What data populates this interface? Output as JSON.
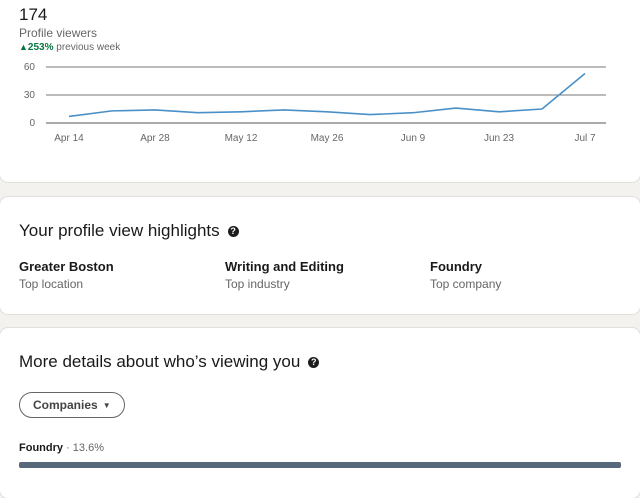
{
  "summary": {
    "count": "174",
    "label": "Profile viewers",
    "trend_arrow": "▲",
    "trend_pct": "253%",
    "trend_text": "previous week"
  },
  "chart_data": {
    "type": "line",
    "x": [
      "Apr 14",
      "Apr 21",
      "Apr 28",
      "May 5",
      "May 12",
      "May 19",
      "May 26",
      "Jun 2",
      "Jun 9",
      "Jun 16",
      "Jun 23",
      "Jun 30",
      "Jul 7"
    ],
    "tick_labels": [
      "Apr 14",
      "Apr 28",
      "May 12",
      "May 26",
      "Jun 9",
      "Jun 23",
      "Jul 7"
    ],
    "yticks": [
      "60",
      "30",
      "0"
    ],
    "ylim": [
      0,
      60
    ],
    "series": [
      {
        "values": [
          7,
          13,
          14,
          11,
          12,
          14,
          12,
          9,
          11,
          16,
          12,
          15,
          53
        ]
      }
    ],
    "line_color": "#4a90c8",
    "grid": true
  },
  "highlights": {
    "title": "Your profile view highlights",
    "items": [
      {
        "value": "Greater Boston",
        "label": "Top location"
      },
      {
        "value": "Writing and Editing",
        "label": "Top industry"
      },
      {
        "value": "Foundry",
        "label": "Top company"
      }
    ]
  },
  "details": {
    "title": "More details about who’s viewing you",
    "filter_label": "Companies",
    "company_name": "Foundry",
    "company_sep": " · ",
    "company_pct": "13.6%",
    "bar_fraction": 1.0,
    "bar_color": "#56687a"
  }
}
